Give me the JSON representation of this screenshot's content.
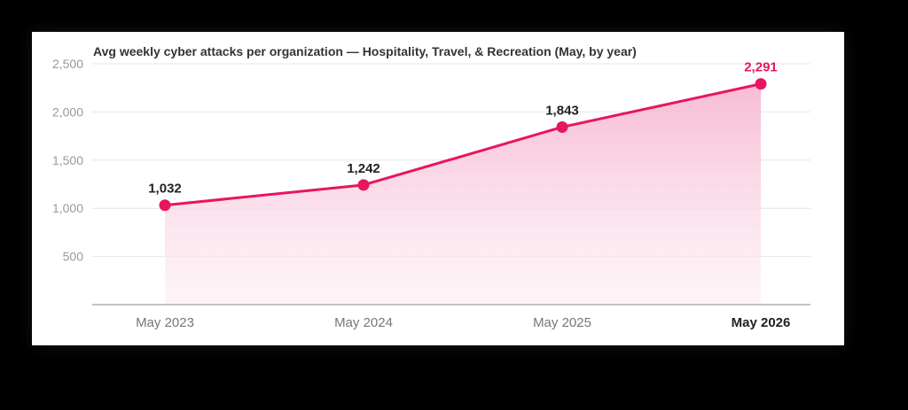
{
  "chart_data": {
    "type": "area",
    "title": "Avg weekly cyber attacks per organization — Hospitality, Travel, & Recreation (May, by year)",
    "categories": [
      "May 2023",
      "May 2024",
      "May 2025",
      "May 2026"
    ],
    "values": [
      1032,
      1242,
      1843,
      2291
    ],
    "value_labels": [
      "1,032",
      "1,242",
      "1,843",
      "2,291"
    ],
    "highlight_index": 3,
    "y_ticks": [
      500,
      1000,
      1500,
      2000,
      2500
    ],
    "y_tick_labels": [
      "500",
      "1,000",
      "1,500",
      "2,000",
      "2,500"
    ],
    "ylim": [
      0,
      2500
    ],
    "grid": true,
    "legend": "none",
    "colors": {
      "line": "#e8155f",
      "fill_top": "#f7b8d2",
      "fill_bottom": "#fdeef4",
      "highlight_label": "#e8155f"
    }
  }
}
